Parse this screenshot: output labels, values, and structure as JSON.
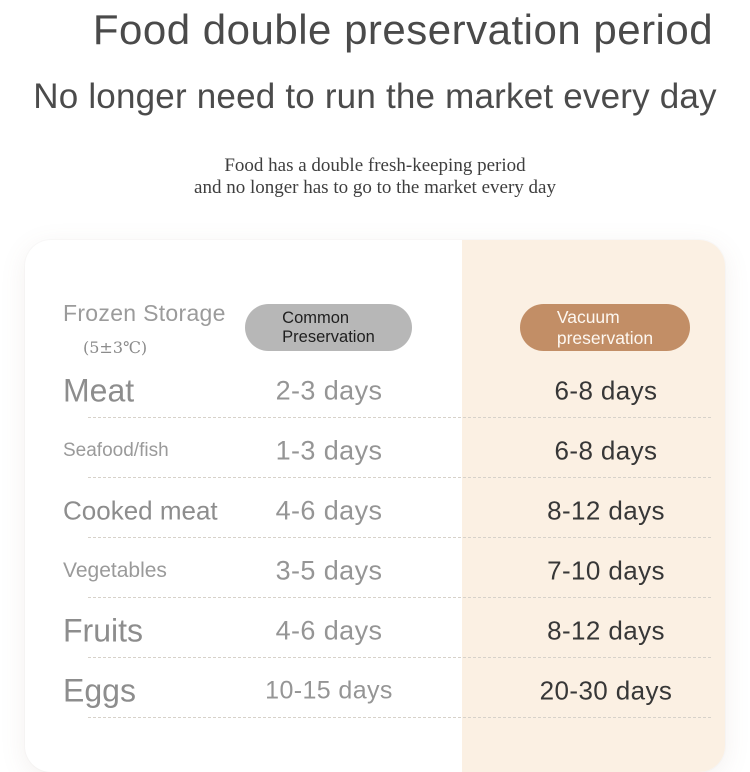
{
  "header": {
    "title": "Food double preservation period",
    "subtitle": "No longer need to run the market every day",
    "description_line1": "Food has a double fresh-keeping period",
    "description_line2": "and no longer has to go to the market every day"
  },
  "table": {
    "corner": {
      "label": "Frozen Storage",
      "sublabel": "(5±3℃)"
    },
    "columns": [
      {
        "label": "Common Preservation",
        "line1": "Common",
        "line2": "Preservation"
      },
      {
        "label": "Vacuum preservation",
        "line1": "Vacuum",
        "line2": "preservation"
      }
    ],
    "rows": [
      {
        "food": "Meat",
        "common": "2-3 days",
        "vacuum": "6-8 days"
      },
      {
        "food": "Seafood/fish",
        "common": "1-3 days",
        "vacuum": "6-8 days"
      },
      {
        "food": "Cooked meat",
        "common": "4-6 days",
        "vacuum": "8-12 days"
      },
      {
        "food": "Vegetables",
        "common": "3-5 days",
        "vacuum": "7-10 days"
      },
      {
        "food": "Fruits",
        "common": "4-6 days",
        "vacuum": "8-12 days"
      },
      {
        "food": "Eggs",
        "common": "10-15 days",
        "vacuum": "20-30 days"
      }
    ]
  },
  "colors": {
    "accent_pill": "#c28e66",
    "gray_pill": "#b7b7b7",
    "peach_column_bg": "#fbf0e3",
    "dark_value_text": "#373737",
    "gray_value_text": "#959595"
  },
  "chart_data": {
    "type": "table",
    "title": "Food double preservation period",
    "subtitle": "No longer need to run the market every day",
    "condition": "Frozen Storage (5±3℃)",
    "columns": [
      "Food",
      "Common Preservation",
      "Vacuum preservation"
    ],
    "rows": [
      [
        "Meat",
        "2-3 days",
        "6-8 days"
      ],
      [
        "Seafood/fish",
        "1-3 days",
        "6-8 days"
      ],
      [
        "Cooked meat",
        "4-6 days",
        "8-12 days"
      ],
      [
        "Vegetables",
        "3-5 days",
        "7-10 days"
      ],
      [
        "Fruits",
        "4-6 days",
        "8-12 days"
      ],
      [
        "Eggs",
        "10-15 days",
        "20-30 days"
      ]
    ]
  }
}
